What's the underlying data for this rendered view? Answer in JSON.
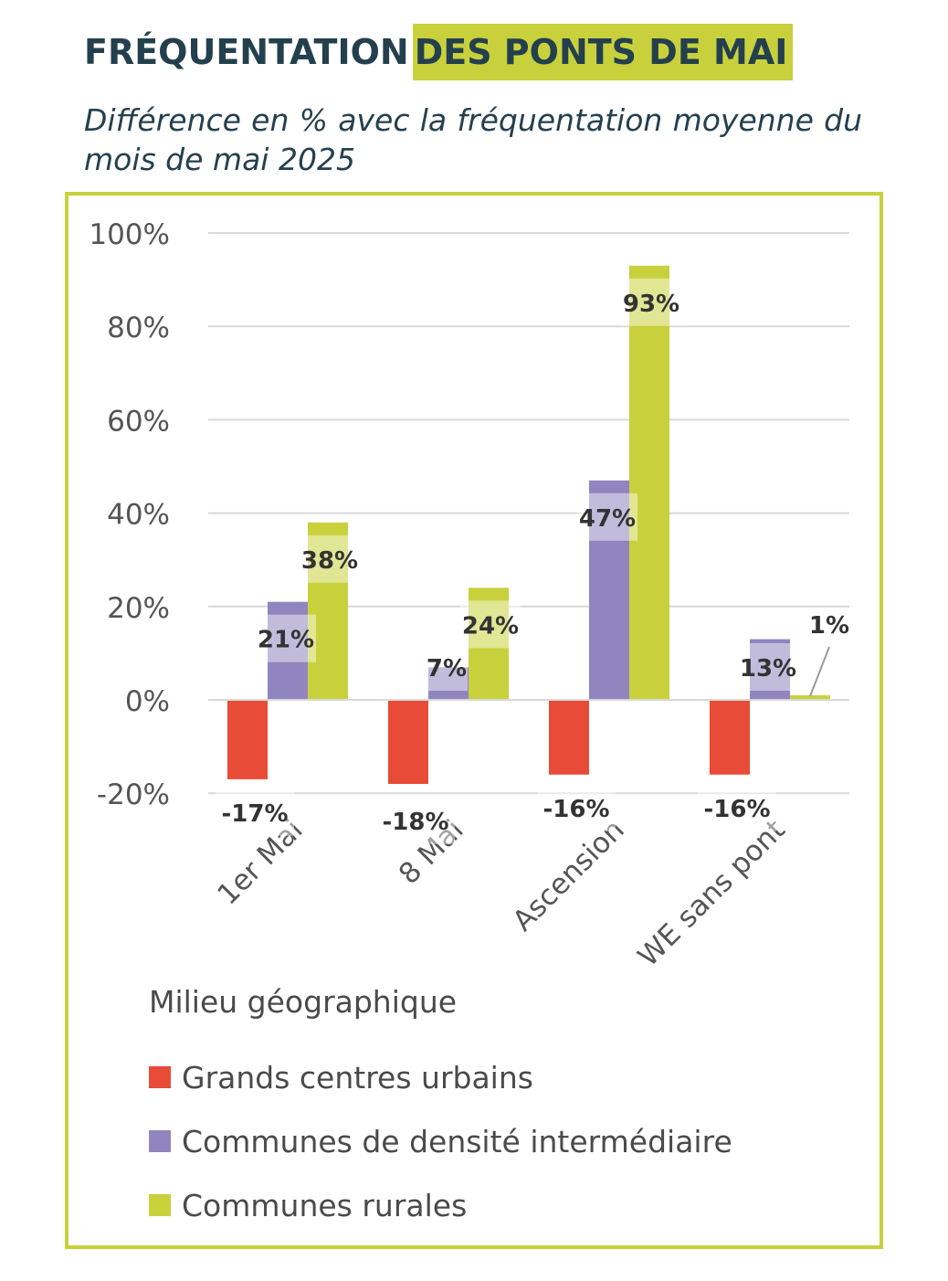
{
  "header": {
    "title_part1": "FRÉQUENTATION",
    "title_part2": "DES PONTS DE MAI",
    "subtitle": "Différence en % avec la fréquentation moyenne du mois de mai 2025"
  },
  "colors": {
    "urbain": "#e84b37",
    "intermediaire": "#9185c0",
    "rurales": "#c8d13c",
    "frame": "#c8d13c",
    "title": "#24404e"
  },
  "chart_data": {
    "type": "bar",
    "categories": [
      "1er Mai",
      "8 Mai",
      "Ascension",
      "WE sans pont"
    ],
    "series": [
      {
        "name": "Grands centres urbains",
        "values": [
          -17,
          -18,
          -16,
          -16
        ],
        "labels": [
          "-17%",
          "-18%",
          "-16%",
          "-16%"
        ]
      },
      {
        "name": "Communes de densité intermédiaire",
        "values": [
          21,
          7,
          47,
          13
        ],
        "labels": [
          "21%",
          "7%",
          "47%",
          "13%"
        ]
      },
      {
        "name": "Communes rurales",
        "values": [
          38,
          24,
          93,
          1
        ],
        "labels": [
          "38%",
          "24%",
          "93%",
          "1%"
        ]
      }
    ],
    "ylim": [
      -20,
      100
    ],
    "yticks": [
      100,
      80,
      60,
      40,
      20,
      0,
      -20
    ],
    "ytick_labels": [
      "100%",
      "80%",
      "60%",
      "40%",
      "20%",
      "0%",
      "-20%"
    ],
    "grid": true,
    "legend_title": "Milieu géographique",
    "legend_position": "bottom"
  }
}
